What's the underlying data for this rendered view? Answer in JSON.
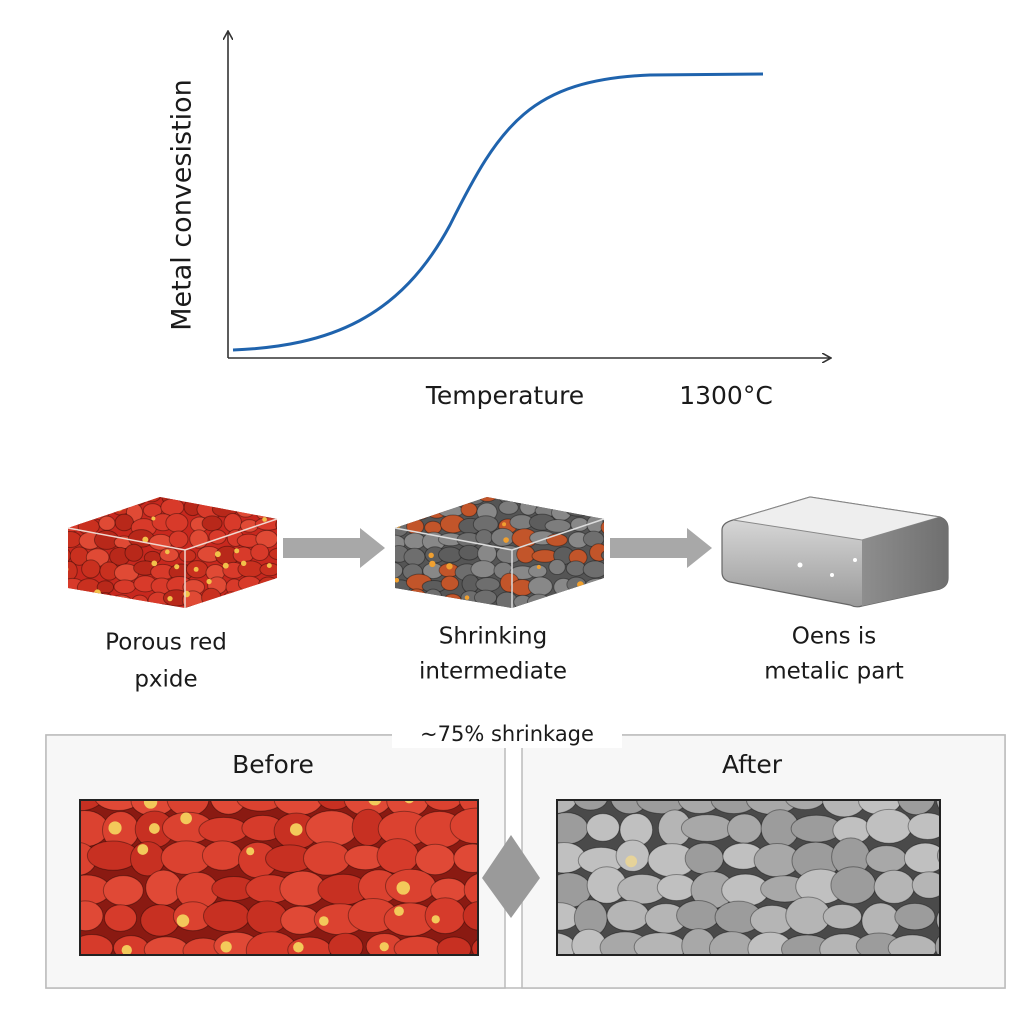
{
  "graph": {
    "y_label": "Metal convesistion",
    "x_label": "Temperature",
    "x_note": "1300°C"
  },
  "stages": [
    {
      "lines": [
        "Porous red",
        "pxide"
      ]
    },
    {
      "lines": [
        "Shrinking",
        "intermediate"
      ]
    },
    {
      "lines": [
        "Oens is",
        "metalic part"
      ]
    }
  ],
  "comparison": {
    "title": "~75% shrinkage",
    "before": "Before",
    "after": "After"
  }
}
